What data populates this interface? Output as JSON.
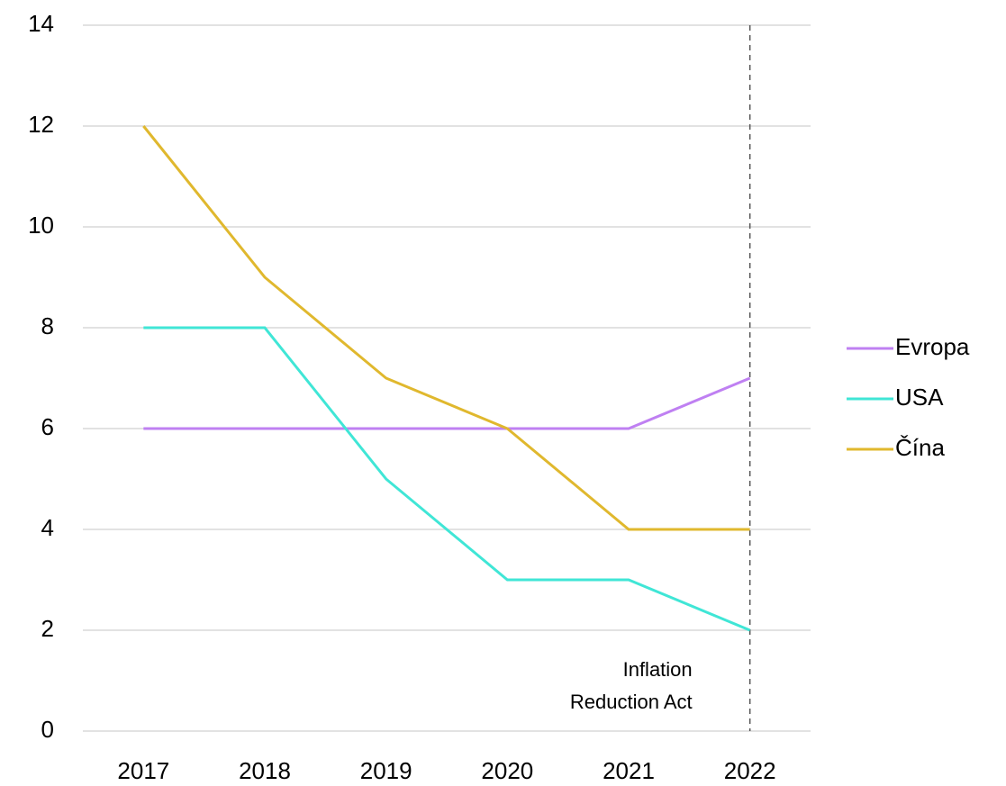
{
  "chart_data": {
    "type": "line",
    "categories": [
      "2017",
      "2018",
      "2019",
      "2020",
      "2021",
      "2022"
    ],
    "series": [
      {
        "name": "Evropa",
        "color": "#bf80f2",
        "values": [
          6,
          6,
          6,
          6,
          6,
          7
        ]
      },
      {
        "name": "USA",
        "color": "#40e6d6",
        "values": [
          8,
          8,
          5,
          3,
          3,
          2
        ]
      },
      {
        "name": "Čína",
        "color": "#e0b82e",
        "values": [
          12,
          9,
          7,
          6,
          4,
          4
        ]
      }
    ],
    "ylim": [
      0,
      14
    ],
    "yticks": [
      0,
      2,
      4,
      6,
      8,
      10,
      12,
      14
    ],
    "grid": true,
    "legend": "right",
    "annotation": {
      "x": "2022",
      "lines": [
        "Inflation",
        "Reduction Act"
      ]
    }
  }
}
